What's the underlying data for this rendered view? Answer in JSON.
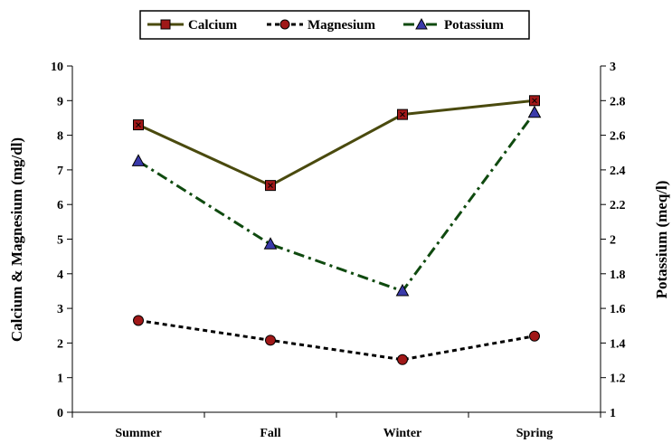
{
  "chart_data": {
    "type": "line",
    "categories": [
      "Summer",
      "Fall",
      "Winter",
      "Spring"
    ],
    "series": [
      {
        "name": "Calcium",
        "axis": "left",
        "values": [
          8.3,
          6.55,
          8.6,
          9.0
        ],
        "color": "#4a4a0e",
        "marker_fill": "#a01818",
        "marker": "square",
        "line_style": "solid"
      },
      {
        "name": "Magnesium",
        "axis": "left",
        "values": [
          2.65,
          2.08,
          1.52,
          2.2
        ],
        "color": "#000000",
        "marker_fill": "#a01818",
        "marker": "circle",
        "line_style": "dotted"
      },
      {
        "name": "Potassium",
        "axis": "right",
        "values": [
          2.45,
          1.97,
          1.7,
          2.73
        ],
        "color": "#0f4a0f",
        "marker_fill": "#3a3aaa",
        "marker": "triangle",
        "line_style": "dashdot"
      }
    ],
    "y_left": {
      "label": "Calcium & Magnesium (mg/dl)",
      "ylim": [
        0,
        10
      ],
      "ticks": [
        "0",
        "1",
        "2",
        "3",
        "4",
        "5",
        "6",
        "7",
        "8",
        "9",
        "10"
      ]
    },
    "y_right": {
      "label": "Potassium (meq/l)",
      "ylim": [
        1,
        3
      ],
      "ticks": [
        "1",
        "1.2",
        "1.4",
        "1.6",
        "1.8",
        "2",
        "2.2",
        "2.4",
        "2.6",
        "2.8",
        "3"
      ]
    },
    "xlabel": "",
    "title": "",
    "grid": false,
    "legend_position": "top-center"
  }
}
